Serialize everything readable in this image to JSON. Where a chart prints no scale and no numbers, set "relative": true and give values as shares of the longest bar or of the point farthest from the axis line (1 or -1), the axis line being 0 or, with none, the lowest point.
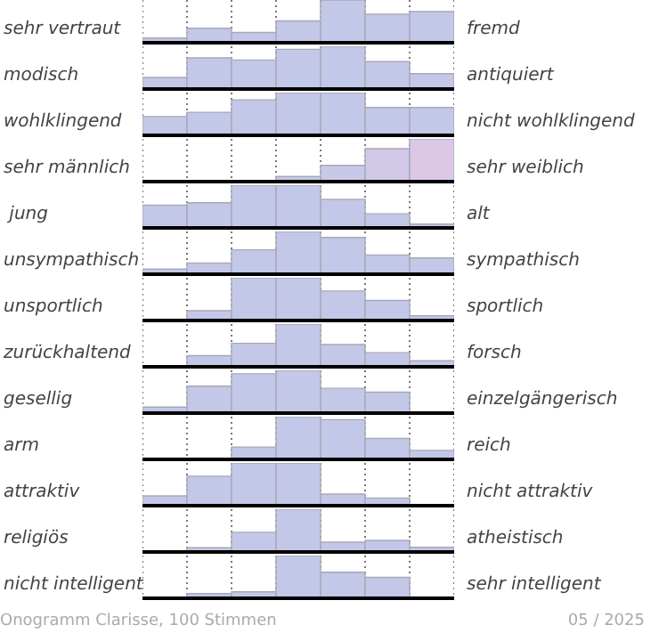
{
  "chart_data": [
    {
      "type": "bar",
      "ylabel": "sehr vertraut",
      "y2label": "fremd",
      "relative": true,
      "grid": "x",
      "color": "#c3c8e8",
      "categories": [
        null,
        null,
        null,
        null,
        null,
        null,
        null
      ],
      "values": [
        0.11,
        0.34,
        0.24,
        0.51,
        1,
        0.67,
        0.73
      ]
    },
    {
      "type": "bar",
      "ylabel": "modisch",
      "y2label": "antiquiert",
      "relative": true,
      "grid": "x",
      "color": "#c3c8e8",
      "categories": [
        null,
        null,
        null,
        null,
        null,
        null,
        null
      ],
      "values": [
        0.27,
        0.73,
        0.68,
        0.93,
        1,
        0.64,
        0.36
      ]
    },
    {
      "type": "bar",
      "ylabel": "wohlklingend",
      "y2label": "nicht wohlklingend",
      "relative": true,
      "grid": "x",
      "color": "#c3c8e8",
      "categories": [
        null,
        null,
        null,
        null,
        null,
        null,
        null
      ],
      "values": [
        0.44,
        0.54,
        0.83,
        1,
        1,
        0.65,
        0.65
      ]
    },
    {
      "type": "bar",
      "ylabel": "sehr männlich",
      "y2label": "sehr weiblich",
      "relative": true,
      "grid": "x",
      "colors": [
        "#c3c8e8",
        "#c3c8e8",
        "#c3c8e8",
        "#c3c8e8",
        "#c8c8e8",
        "#d2c8e8",
        "#dcc8e6"
      ],
      "categories": [
        null,
        null,
        null,
        null,
        null,
        null,
        null
      ],
      "values": [
        0,
        0,
        0,
        0.12,
        0.38,
        0.77,
        1
      ]
    },
    {
      "type": "bar",
      "ylabel": " jung",
      "y2label": "alt",
      "relative": true,
      "grid": "x",
      "color": "#c3c8e8",
      "categories": [
        null,
        null,
        null,
        null,
        null,
        null,
        null
      ],
      "values": [
        0.53,
        0.59,
        1,
        1,
        0.67,
        0.33,
        0.09
      ]
    },
    {
      "type": "bar",
      "ylabel": "unsympathisch",
      "y2label": "sympathisch",
      "relative": true,
      "grid": "x",
      "color": "#c3c8e8",
      "categories": [
        null,
        null,
        null,
        null,
        null,
        null,
        null
      ],
      "values": [
        0.12,
        0.26,
        0.57,
        1,
        0.86,
        0.45,
        0.38
      ]
    },
    {
      "type": "bar",
      "ylabel": "unsportlich",
      "y2label": "sportlich",
      "relative": true,
      "grid": "x",
      "color": "#c3c8e8",
      "categories": [
        null,
        null,
        null,
        null,
        null,
        null,
        null
      ],
      "values": [
        0,
        0.23,
        1,
        1,
        0.69,
        0.47,
        0.11
      ]
    },
    {
      "type": "bar",
      "ylabel": "zurückhaltend",
      "y2label": "forsch",
      "relative": true,
      "grid": "x",
      "color": "#c3c8e8",
      "categories": [
        null,
        null,
        null,
        null,
        null,
        null,
        null
      ],
      "values": [
        0,
        0.26,
        0.55,
        1,
        0.52,
        0.33,
        0.14
      ]
    },
    {
      "type": "bar",
      "ylabel": "gesellig",
      "y2label": "einzelgängerisch",
      "relative": true,
      "grid": "x",
      "color": "#c3c8e8",
      "categories": [
        null,
        null,
        null,
        null,
        null,
        null,
        null
      ],
      "values": [
        0.14,
        0.63,
        0.92,
        1,
        0.58,
        0.49,
        0
      ]
    },
    {
      "type": "bar",
      "ylabel": "arm",
      "y2label": "reich",
      "relative": true,
      "grid": "x",
      "color": "#c3c8e8",
      "categories": [
        null,
        null,
        null,
        null,
        null,
        null,
        null
      ],
      "values": [
        0,
        0,
        0.29,
        1,
        0.93,
        0.49,
        0.21
      ]
    },
    {
      "type": "bar",
      "ylabel": "attraktiv",
      "y2label": "nicht attraktiv",
      "relative": true,
      "grid": "x",
      "color": "#c3c8e8",
      "categories": [
        null,
        null,
        null,
        null,
        null,
        null,
        null
      ],
      "values": [
        0.23,
        0.69,
        1,
        1,
        0.27,
        0.18,
        0
      ]
    },
    {
      "type": "bar",
      "ylabel": "religiös",
      "y2label": "atheistisch",
      "relative": true,
      "grid": "x",
      "color": "#c3c8e8",
      "categories": [
        null,
        null,
        null,
        null,
        null,
        null,
        null
      ],
      "values": [
        0,
        0.1,
        0.46,
        1,
        0.23,
        0.27,
        0.11
      ]
    },
    {
      "type": "bar",
      "ylabel": "nicht intelligent",
      "y2label": "sehr intelligent",
      "relative": true,
      "grid": "x",
      "color": "#c3c8e8",
      "categories": [
        null,
        null,
        null,
        null,
        null,
        null,
        null
      ],
      "values": [
        0,
        0.11,
        0.15,
        1,
        0.61,
        0.49,
        0
      ],
      "annotations": [
        "Onogramm Clarisse, 100 Stimmen",
        "05 / 2025"
      ]
    }
  ]
}
